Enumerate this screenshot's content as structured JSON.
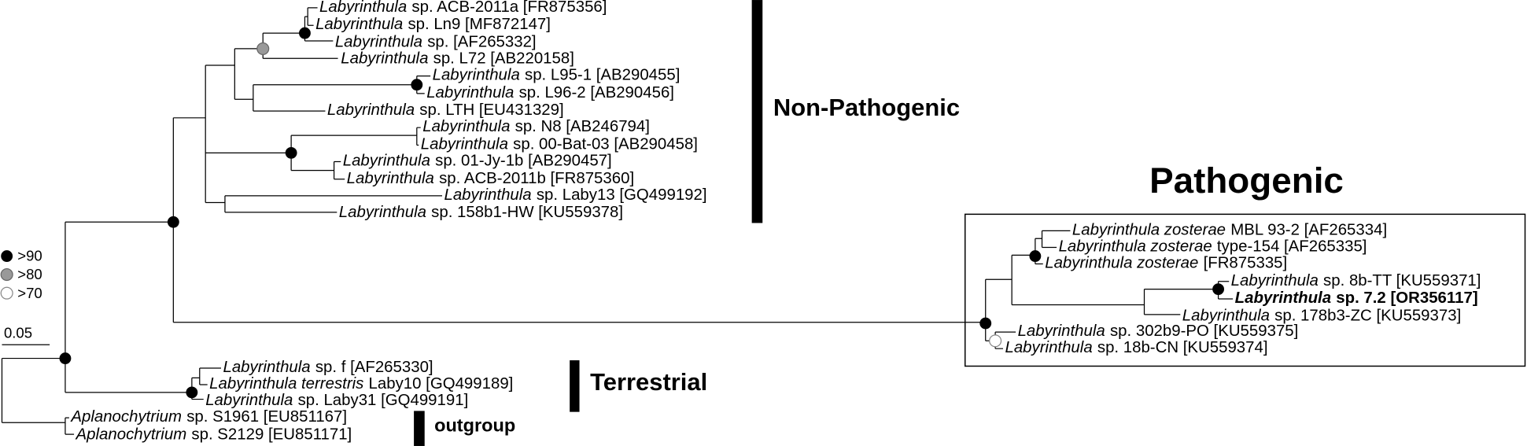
{
  "legend": [
    ">90",
    ">80",
    ">70"
  ],
  "scale_bar": "0.05",
  "groups": {
    "non_pathogenic": "Non-Pathogenic",
    "pathogenic": "Pathogenic",
    "terrestrial": "Terrestrial",
    "outgroup": "outgroup"
  },
  "leaves": [
    {
      "italic": "Labyrinthula",
      "text": "sp. ACB-2011a [FR875356]"
    },
    {
      "italic": "Labyrinthula",
      "text": "sp. Ln9 [MF872147]"
    },
    {
      "italic": "Labyrinthula",
      "text": "sp. [AF265332]"
    },
    {
      "italic": "Labyrinthula",
      "text": "sp. L72 [AB220158]"
    },
    {
      "italic": "Labyrinthula",
      "text": "sp. L95-1 [AB290455]"
    },
    {
      "italic": "Labyrinthula",
      "text": "sp. L96-2 [AB290456]"
    },
    {
      "italic": "Labyrinthula",
      "text": "sp. LTH [EU431329]"
    },
    {
      "italic": "Labyrinthula",
      "text": "sp. N8 [AB246794]"
    },
    {
      "italic": "Labyrinthula",
      "text": "sp. 00-Bat-03 [AB290458]"
    },
    {
      "italic": "Labyrinthula",
      "text": "sp. 01-Jy-1b [AB290457]"
    },
    {
      "italic": "Labyrinthula",
      "text": "sp. ACB-2011b [FR875360]"
    },
    {
      "italic": "Labyrinthula",
      "text": "sp. Laby13 [GQ499192]"
    },
    {
      "italic": "Labyrinthula",
      "text": "sp. 158b1-HW [KU559378]"
    },
    {
      "italic": "Labyrinthula zosterae",
      "text": "MBL 93-2 [AF265334]"
    },
    {
      "italic": "Labyrinthula zosterae",
      "text": "type-154 [AF265335]"
    },
    {
      "italic": "Labyrinthula zosterae",
      "text": "[FR875335]"
    },
    {
      "italic": "Labyrinthula",
      "text": "sp. 8b-TT [KU559371]"
    },
    {
      "italic": "Labyrinthula",
      "text": "sp. 7.2 [OR356117]"
    },
    {
      "italic": "Labyrinthula",
      "text": "sp. 178b3-ZC [KU559373]"
    },
    {
      "italic": "Labyrinthula",
      "text": "sp. 302b9-PO [KU559375]"
    },
    {
      "italic": "Labyrinthula",
      "text": "sp. 18b-CN [KU559374]"
    },
    {
      "italic": "Labyrinthula",
      "text": "sp. f [AF265330]"
    },
    {
      "italic": "Labyrinthula terrestris",
      "text": "Laby10 [GQ499189]"
    },
    {
      "italic": "Labyrinthula",
      "text": "sp. Laby31 [GQ499191]"
    },
    {
      "italic": "Aplanochytrium",
      "text": "sp. S1961 [EU851167]"
    },
    {
      "italic": "Aplanochytrium",
      "text": "sp. S2129 [EU851171]"
    }
  ]
}
